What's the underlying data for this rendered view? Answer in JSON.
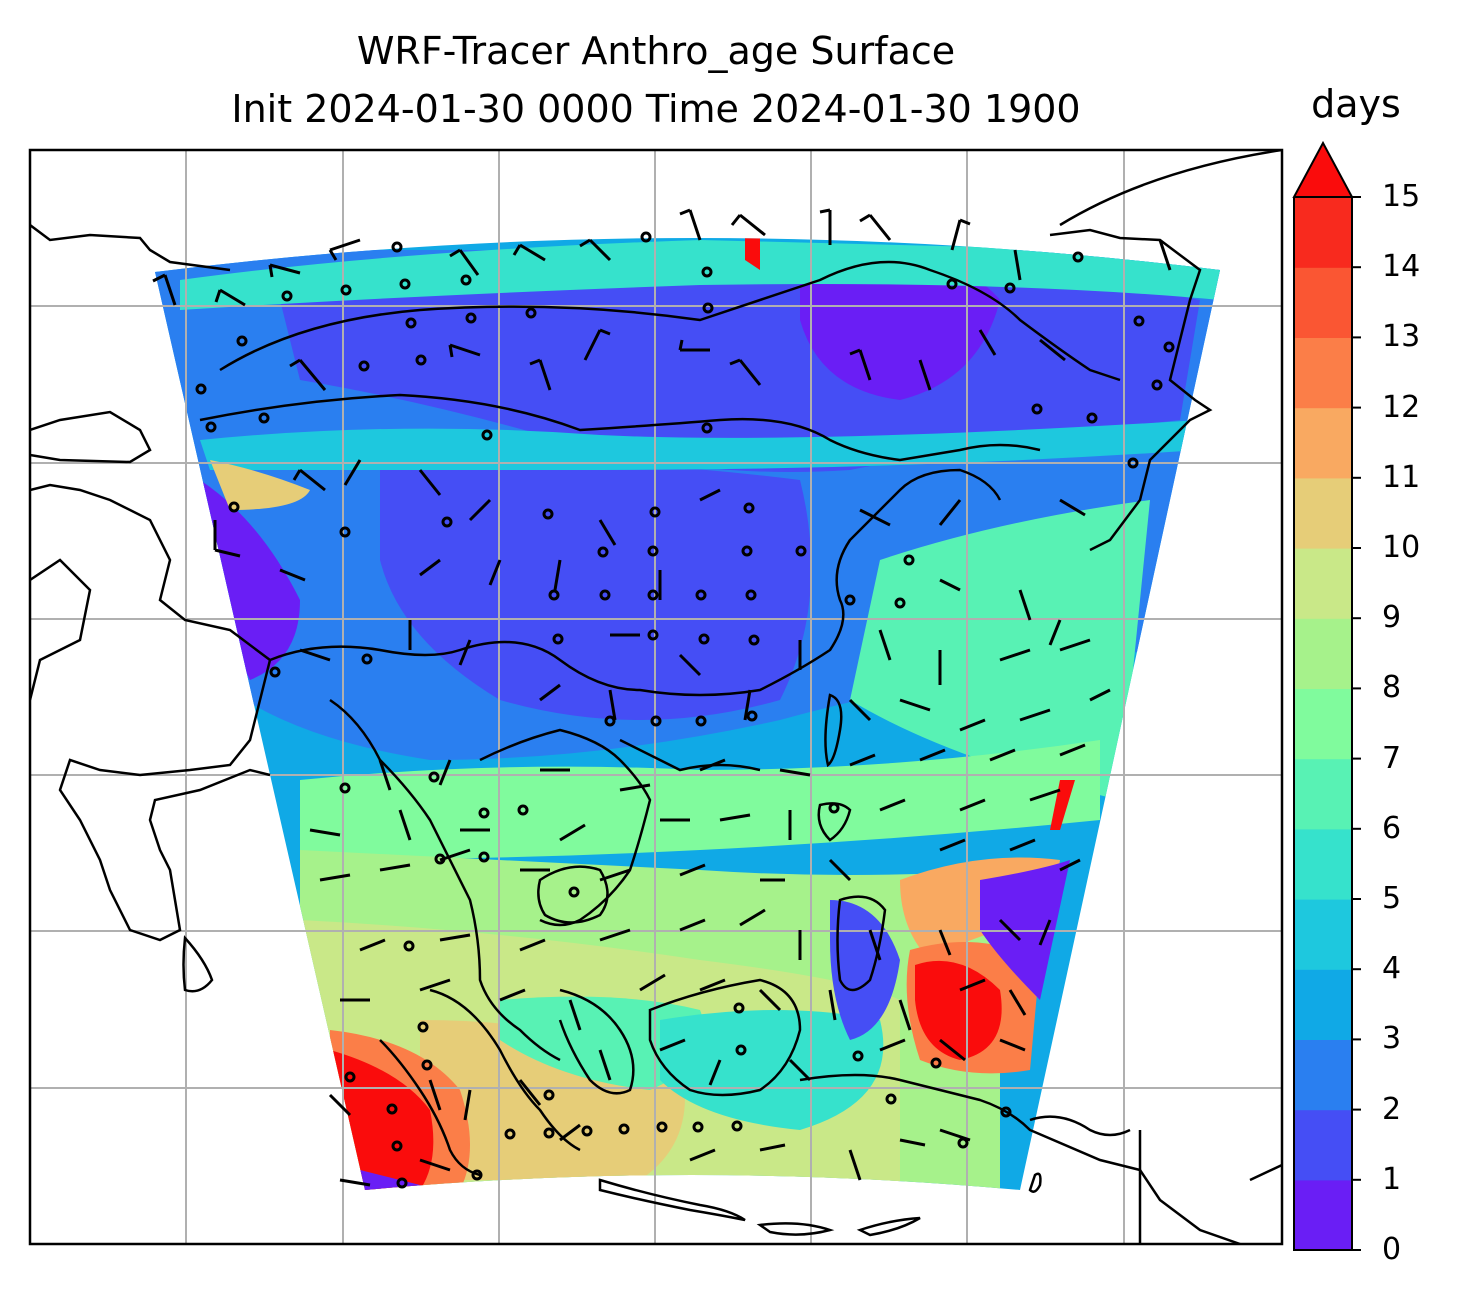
{
  "title_line1": "WRF-Tracer Anthro_age Surface",
  "title_line2": "Init 2024-01-30 0000 Time 2024-01-30 1900",
  "colorbar": {
    "unit": "days",
    "ticks": [
      "0",
      "1",
      "2",
      "3",
      "4",
      "5",
      "6",
      "7",
      "8",
      "9",
      "10",
      "11",
      "12",
      "13",
      "14",
      "15"
    ],
    "colors": [
      "#6a1ef5",
      "#454ef5",
      "#2a7ff0",
      "#10a9e6",
      "#1ec8de",
      "#36e2cc",
      "#58f2b4",
      "#80fb9d",
      "#a6f28b",
      "#c9e888",
      "#e6cd78",
      "#f9a961",
      "#fb7e48",
      "#fa5633",
      "#f82a1e"
    ],
    "extend_color": "#fa0c0c",
    "extend": "max"
  }
}
